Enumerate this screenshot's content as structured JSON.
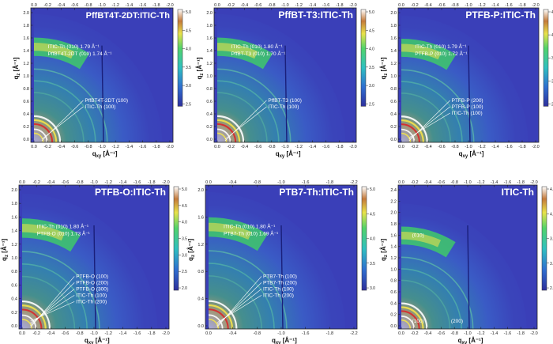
{
  "panels": [
    {
      "title": "PffBT4T-2DT:ITIC-Th",
      "xlabel": "q",
      "xlabel_sub": "xy",
      "xlabel_unit": " [Å⁻¹]",
      "ylabel": "q",
      "ylabel_sub": "z",
      "ylabel_unit": " [Å⁻¹]",
      "top_ticks": [
        "0.0",
        "-0.2",
        "-0.4",
        "-0.6",
        "-0.8",
        "-1.0",
        "-1.2",
        "-1.4",
        "-1.6",
        "-1.8",
        "-2.0"
      ],
      "bottom_ticks": [
        "0.0",
        "-0.2",
        "-0.4",
        "-0.6",
        "-0.8",
        "-1.0",
        "-1.2",
        "-1.4",
        "-1.6",
        "-1.8",
        "-2.0"
      ],
      "left_ticks": [
        "0.0",
        "0.2",
        "0.4",
        "0.6",
        "0.8",
        "1.0",
        "1.2",
        "1.4",
        "1.6",
        "1.8",
        "2.0"
      ],
      "colorbar_ticks": [
        "5.0",
        "4.5",
        "4.0",
        "3.5",
        "3.0",
        "2.5"
      ],
      "annotations_top": [
        "ITIC-Th (010)  1.79 Å⁻¹",
        "PffBT4T-2DT (010) 1.74 Å⁻¹"
      ],
      "annotations_bottom": [
        "PffBT4T-2DT (100)",
        "ITIC-Th (100)"
      ]
    },
    {
      "title": "PffBT-T3:ITIC-Th",
      "xlabel": "q",
      "xlabel_sub": "xy",
      "xlabel_unit": " [Å⁻¹]",
      "ylabel": "q",
      "ylabel_sub": "z",
      "ylabel_unit": " [Å⁻¹]",
      "top_ticks": [
        "0.0",
        "-0.2",
        "-0.4",
        "-0.6",
        "-0.8",
        "-1.0",
        "-1.2",
        "-1.4",
        "-1.6",
        "-1.8",
        "-2.0"
      ],
      "bottom_ticks": [
        "0.0",
        "-0.2",
        "-0.4",
        "-0.6",
        "-0.8",
        "-1.0",
        "-1.2",
        "-1.4",
        "-1.6",
        "-1.8",
        "-2.0"
      ],
      "left_ticks": [
        "0.0",
        "0.2",
        "0.4",
        "0.6",
        "0.8",
        "1.0",
        "1.2",
        "1.4",
        "1.6",
        "1.8",
        "2.0"
      ],
      "colorbar_ticks": [
        "5.0",
        "4.5",
        "4.0",
        "3.5",
        "3.0",
        "2.5"
      ],
      "annotations_top": [
        "ITIC-Th (010)  1.80 Å⁻¹",
        "PffBT-T3 (010) 1.70 Å⁻¹"
      ],
      "annotations_bottom": [
        "PffBT-T3 (100)",
        "ITIC-Th (100)"
      ]
    },
    {
      "title": "PTFB-P:ITIC-Th",
      "xlabel": "q",
      "xlabel_sub": "xy",
      "xlabel_unit": " [Å⁻¹]",
      "ylabel": "q",
      "ylabel_sub": "z",
      "ylabel_unit": " [Å⁻¹]",
      "top_ticks": [
        "0.0",
        "-0.2",
        "-0.4",
        "-0.6",
        "-0.8",
        "-1.0",
        "-1.2",
        "-1.4",
        "-1.6",
        "-1.8",
        "-2.0"
      ],
      "bottom_ticks": [
        "0.0",
        "-0.2",
        "-0.4",
        "-0.6",
        "-0.8",
        "-1.0",
        "-1.2",
        "-1.4",
        "-1.6",
        "-1.8",
        "-2.0"
      ],
      "left_ticks": [
        "0.0",
        "0.2",
        "0.4",
        "0.6",
        "0.8",
        "1.0",
        "1.2",
        "1.4",
        "1.6",
        "1.8",
        "2.0"
      ],
      "colorbar_ticks": [
        "4.4",
        "4.0",
        "3.6",
        "3.2",
        "2.8"
      ],
      "annotations_top": [
        "ITIC-Th (010)  1.79 Å⁻¹",
        "PTFB-P (010) 1.72 Å⁻¹"
      ],
      "annotations_bottom": [
        "PTFB-P (200)",
        "PTFB-P (100)",
        "ITIC-Th (100)"
      ]
    },
    {
      "title": "PTFB-O:ITIC-Th",
      "xlabel": "q",
      "xlabel_sub": "xy",
      "xlabel_unit": " [Å⁻¹]",
      "ylabel": "q",
      "ylabel_sub": "z",
      "ylabel_unit": " [Å⁻¹]",
      "top_ticks": [
        "0.0",
        "-0.2",
        "-0.4",
        "-0.6",
        "-0.8",
        "-1.0",
        "-1.2",
        "-1.4",
        "-1.6",
        "-1.8",
        "-2.0"
      ],
      "bottom_ticks": [
        "0.0",
        "-0.2",
        "-0.4",
        "-0.6",
        "-0.8",
        "-1.0",
        "-1.2",
        "-1.4",
        "-1.6",
        "-1.8",
        "-2.0"
      ],
      "left_ticks": [
        "0.0",
        "0.2",
        "0.4",
        "0.6",
        "0.8",
        "1.0",
        "1.2",
        "1.4",
        "1.6",
        "1.8",
        "2.0"
      ],
      "colorbar_ticks": [
        "5.0",
        "4.5",
        "4.0",
        "3.5",
        "3.0",
        "2.5",
        "2.0"
      ],
      "annotations_top": [
        "ITIC-Th (010)  1.80 Å⁻¹",
        "PTFB-O (010)  1.73 Å⁻¹"
      ],
      "annotations_bottom": [
        "PTFB-O (100)",
        "PTFB-O (200)",
        "PTFB-O (300)",
        "ITIC-Th (100)",
        "ITIC-Th (200)"
      ]
    },
    {
      "title": "PTB7-Th:ITIC-Th",
      "xlabel": "q",
      "xlabel_sub": "xy",
      "xlabel_unit": " [Å⁻¹]",
      "ylabel": "q",
      "ylabel_sub": "z",
      "ylabel_unit": " [Å⁻¹]",
      "top_ticks": [
        "0.0",
        "-0.4",
        "-0.8",
        "-1.0",
        "-1.6",
        "-1.8",
        "-2.2"
      ],
      "bottom_ticks": [
        "0.0",
        "-0.4",
        "-0.8",
        "-1.0",
        "-1.6",
        "-1.8",
        "-2.2"
      ],
      "left_ticks": [
        "0.0",
        "0.4",
        "0.8",
        "1.2",
        "1.6",
        "2.0"
      ],
      "colorbar_ticks": [
        "5.0",
        "4.5",
        "4.0",
        "3.5",
        "3.0"
      ],
      "annotations_top": [
        "ITIC-Th (010)  1.80 Å⁻¹",
        "PTB7-Th (010)  1.69 Å⁻¹"
      ],
      "annotations_bottom": [
        "PTB7-Th (100)",
        "PTB7-Th (200)",
        "ITIC-Th (100)",
        "ITIC-Th (200)"
      ]
    },
    {
      "title": "ITIC-Th",
      "xlabel": "q",
      "xlabel_sub": "xy",
      "xlabel_unit": " [Å⁻¹]",
      "ylabel": "q",
      "ylabel_sub": "z",
      "ylabel_unit": " [Å⁻¹]",
      "top_ticks": [
        "0.0",
        "-0.2",
        "-0.4",
        "-0.6",
        "-0.8",
        "-1.0",
        "-1.2",
        "-1.4",
        "-1.6",
        "-1.8",
        "-2.0"
      ],
      "bottom_ticks": [
        "0.0",
        "-0.2",
        "-0.4",
        "-0.6",
        "-0.8",
        "-1.0",
        "-1.2",
        "-1.4",
        "-1.6",
        "-1.8",
        "-2.0"
      ],
      "left_ticks": [
        "0.0",
        "0.2",
        "0.4",
        "0.6",
        "0.8",
        "1.0",
        "1.2",
        "1.4",
        "1.6",
        "1.8",
        "2.0",
        "2.2",
        "2.4"
      ],
      "colorbar_ticks": [
        "4.5",
        "4.0",
        "3.5",
        "3.0",
        "2.5"
      ],
      "annotations_top": [
        "(010)"
      ],
      "annotations_bottom": [
        "(100)",
        "(200)"
      ]
    }
  ],
  "colors": {
    "background_blue": "#3a3fb8",
    "ring_green": "#3fc96a",
    "ring_yellow": "#f3e34a",
    "ring_white": "#fff6d8",
    "ring_red": "#d9262b"
  }
}
